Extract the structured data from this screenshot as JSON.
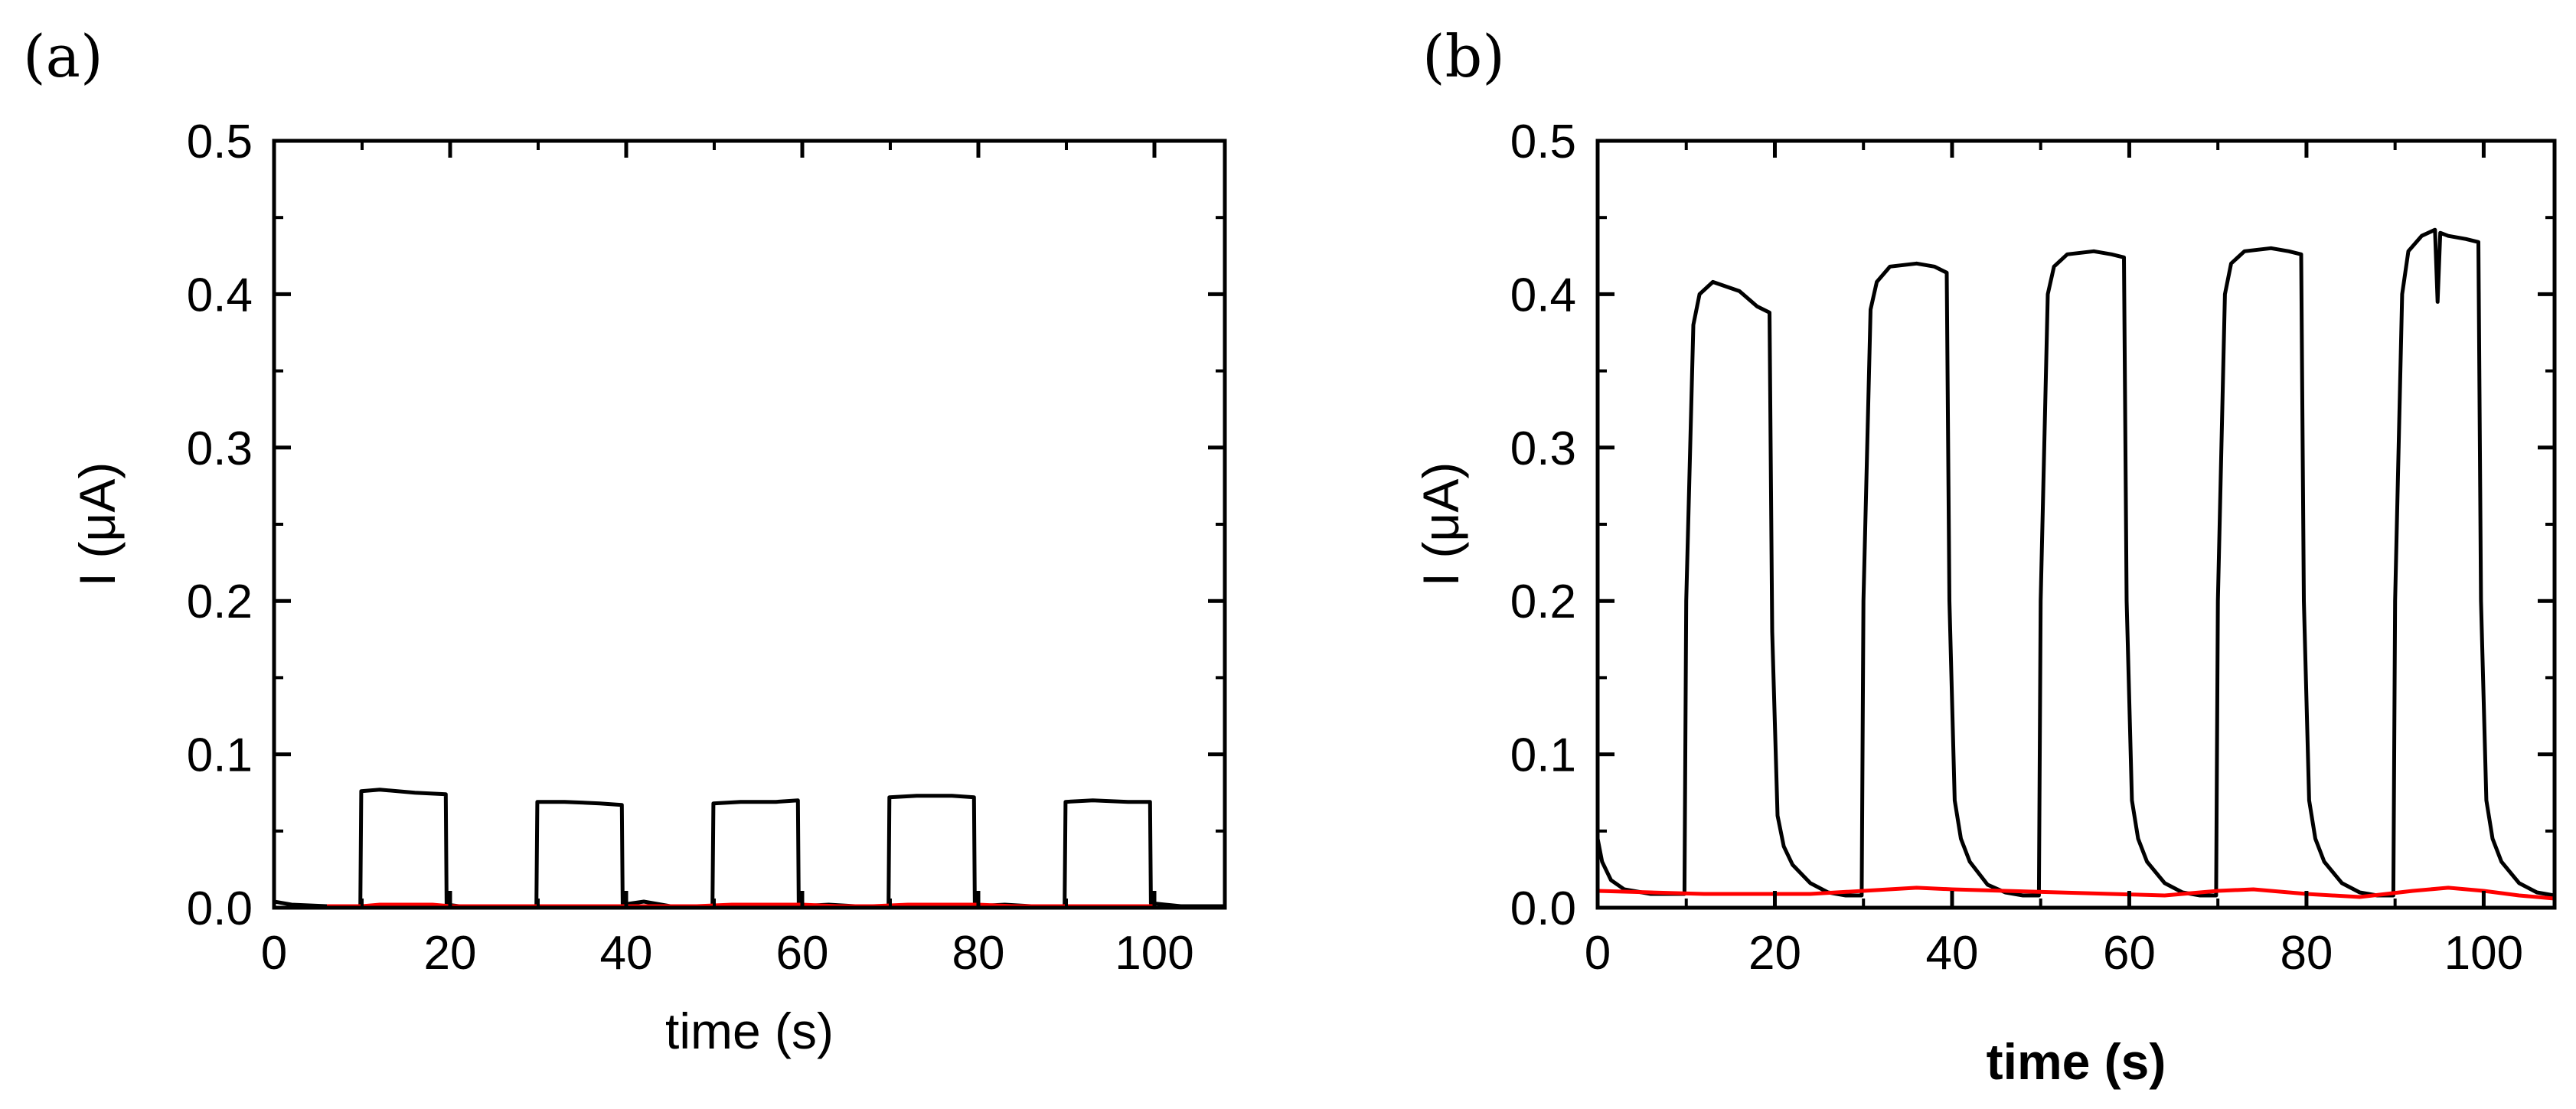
{
  "figure": {
    "colors": {
      "series_dark": "#000000",
      "series_light": "#ff0000",
      "axis": "#000000",
      "background": "#ffffff"
    }
  },
  "chart_data": [
    {
      "type": "line",
      "panel_label": "(a)",
      "xlabel": "time (s)",
      "ylabel": "I (μA)",
      "xlim": [
        0,
        108
      ],
      "ylim": [
        0,
        0.5
      ],
      "xticks": [
        0,
        20,
        40,
        60,
        80,
        100
      ],
      "xtick_labels": [
        "0",
        "20",
        "40",
        "60",
        "80",
        "100"
      ],
      "yticks": [
        0,
        0.1,
        0.2,
        0.3,
        0.4,
        0.5
      ],
      "ytick_labels": [
        "0.0",
        "0.1",
        "0.2",
        "0.3",
        "0.4",
        "0.5"
      ],
      "grid": false,
      "legend": "none",
      "series": [
        {
          "name": "black",
          "color": "#000000",
          "x": [
            0,
            2,
            6,
            9.8,
            9.9,
            12,
            16,
            19.5,
            19.6,
            21,
            25,
            29.8,
            29.9,
            33,
            37,
            39.5,
            39.6,
            42,
            45,
            49.8,
            49.9,
            53,
            57,
            59.5,
            59.6,
            63,
            66,
            69.8,
            69.9,
            73,
            77,
            79.5,
            79.6,
            83,
            86,
            89.8,
            89.9,
            93,
            97,
            99.5,
            99.6,
            103,
            108
          ],
          "y": [
            0.004,
            0.002,
            0.001,
            0.001,
            0.076,
            0.077,
            0.075,
            0.074,
            0.002,
            0.001,
            0.001,
            0.001,
            0.069,
            0.069,
            0.068,
            0.067,
            0.002,
            0.004,
            0.001,
            0.001,
            0.068,
            0.069,
            0.069,
            0.07,
            0.001,
            0.002,
            0.001,
            0.001,
            0.072,
            0.073,
            0.073,
            0.072,
            0.001,
            0.002,
            0.001,
            0.001,
            0.069,
            0.07,
            0.069,
            0.069,
            0.003,
            0.001,
            0.001
          ]
        },
        {
          "name": "red",
          "color": "#ff0000",
          "x": [
            6,
            8,
            10,
            12,
            14,
            16,
            18,
            20,
            24,
            28,
            32,
            36,
            40,
            44,
            48,
            52,
            56,
            60,
            64,
            68,
            72,
            76,
            80,
            84,
            88,
            92,
            96,
            100
          ],
          "y": [
            0.001,
            0.001,
            0.001,
            0.002,
            0.002,
            0.002,
            0.002,
            0.001,
            0.001,
            0.001,
            0.001,
            0.001,
            0.001,
            0.001,
            0.001,
            0.002,
            0.002,
            0.002,
            0.001,
            0.001,
            0.002,
            0.002,
            0.002,
            0.001,
            0.001,
            0.001,
            0.001,
            0.001
          ]
        }
      ]
    },
    {
      "type": "line",
      "panel_label": "(b)",
      "xlabel": "time (s)",
      "ylabel": "I (μA)",
      "xlim": [
        0,
        108
      ],
      "ylim": [
        0,
        0.5
      ],
      "xticks": [
        0,
        20,
        40,
        60,
        80,
        100
      ],
      "xtick_labels": [
        "0",
        "20",
        "40",
        "60",
        "80",
        "100"
      ],
      "yticks": [
        0,
        0.1,
        0.2,
        0.3,
        0.4,
        0.5
      ],
      "ytick_labels": [
        "0.0",
        "0.1",
        "0.2",
        "0.3",
        "0.4",
        "0.5"
      ],
      "grid": false,
      "legend": "none",
      "series": [
        {
          "name": "black",
          "color": "#000000",
          "x": [
            0,
            0.5,
            1.5,
            3,
            6,
            9.8,
            10,
            10.8,
            11.5,
            13,
            16,
            18,
            19.4,
            19.7,
            20.3,
            21,
            22,
            24,
            26,
            28,
            29.8,
            30,
            30.8,
            31.5,
            33,
            36,
            38,
            39.4,
            39.7,
            40.3,
            41,
            42,
            44,
            46,
            48,
            49.8,
            50,
            50.8,
            51.5,
            53,
            56,
            58,
            59.4,
            59.7,
            60.3,
            61,
            62,
            64,
            66,
            68,
            69.8,
            70,
            70.8,
            71.5,
            73,
            76,
            78,
            79.4,
            79.7,
            80.3,
            81,
            82,
            84,
            86,
            88,
            89.8,
            90,
            90.8,
            91.5,
            93,
            94.5,
            94.8,
            95.1,
            96,
            98,
            99.4,
            99.7,
            100.3,
            101,
            102,
            104,
            106,
            108
          ],
          "y": [
            0.045,
            0.03,
            0.018,
            0.012,
            0.009,
            0.009,
            0.2,
            0.38,
            0.4,
            0.408,
            0.402,
            0.392,
            0.388,
            0.18,
            0.06,
            0.04,
            0.028,
            0.016,
            0.01,
            0.008,
            0.008,
            0.2,
            0.39,
            0.408,
            0.418,
            0.42,
            0.418,
            0.414,
            0.2,
            0.07,
            0.045,
            0.03,
            0.015,
            0.01,
            0.008,
            0.008,
            0.2,
            0.4,
            0.418,
            0.426,
            0.428,
            0.426,
            0.424,
            0.2,
            0.07,
            0.045,
            0.03,
            0.016,
            0.01,
            0.008,
            0.008,
            0.2,
            0.4,
            0.42,
            0.428,
            0.43,
            0.428,
            0.426,
            0.2,
            0.07,
            0.045,
            0.03,
            0.016,
            0.01,
            0.008,
            0.008,
            0.2,
            0.4,
            0.428,
            0.438,
            0.442,
            0.395,
            0.44,
            0.438,
            0.436,
            0.434,
            0.2,
            0.07,
            0.045,
            0.03,
            0.016,
            0.01,
            0.008
          ]
        },
        {
          "name": "red",
          "color": "#ff0000",
          "x": [
            0,
            6,
            12,
            18,
            24,
            30,
            36,
            40,
            46,
            52,
            58,
            64,
            70,
            74,
            80,
            86,
            92,
            96,
            100,
            104,
            108
          ],
          "y": [
            0.011,
            0.01,
            0.009,
            0.009,
            0.009,
            0.011,
            0.013,
            0.012,
            0.011,
            0.01,
            0.009,
            0.008,
            0.011,
            0.012,
            0.009,
            0.007,
            0.011,
            0.013,
            0.011,
            0.008,
            0.006
          ]
        }
      ]
    }
  ]
}
